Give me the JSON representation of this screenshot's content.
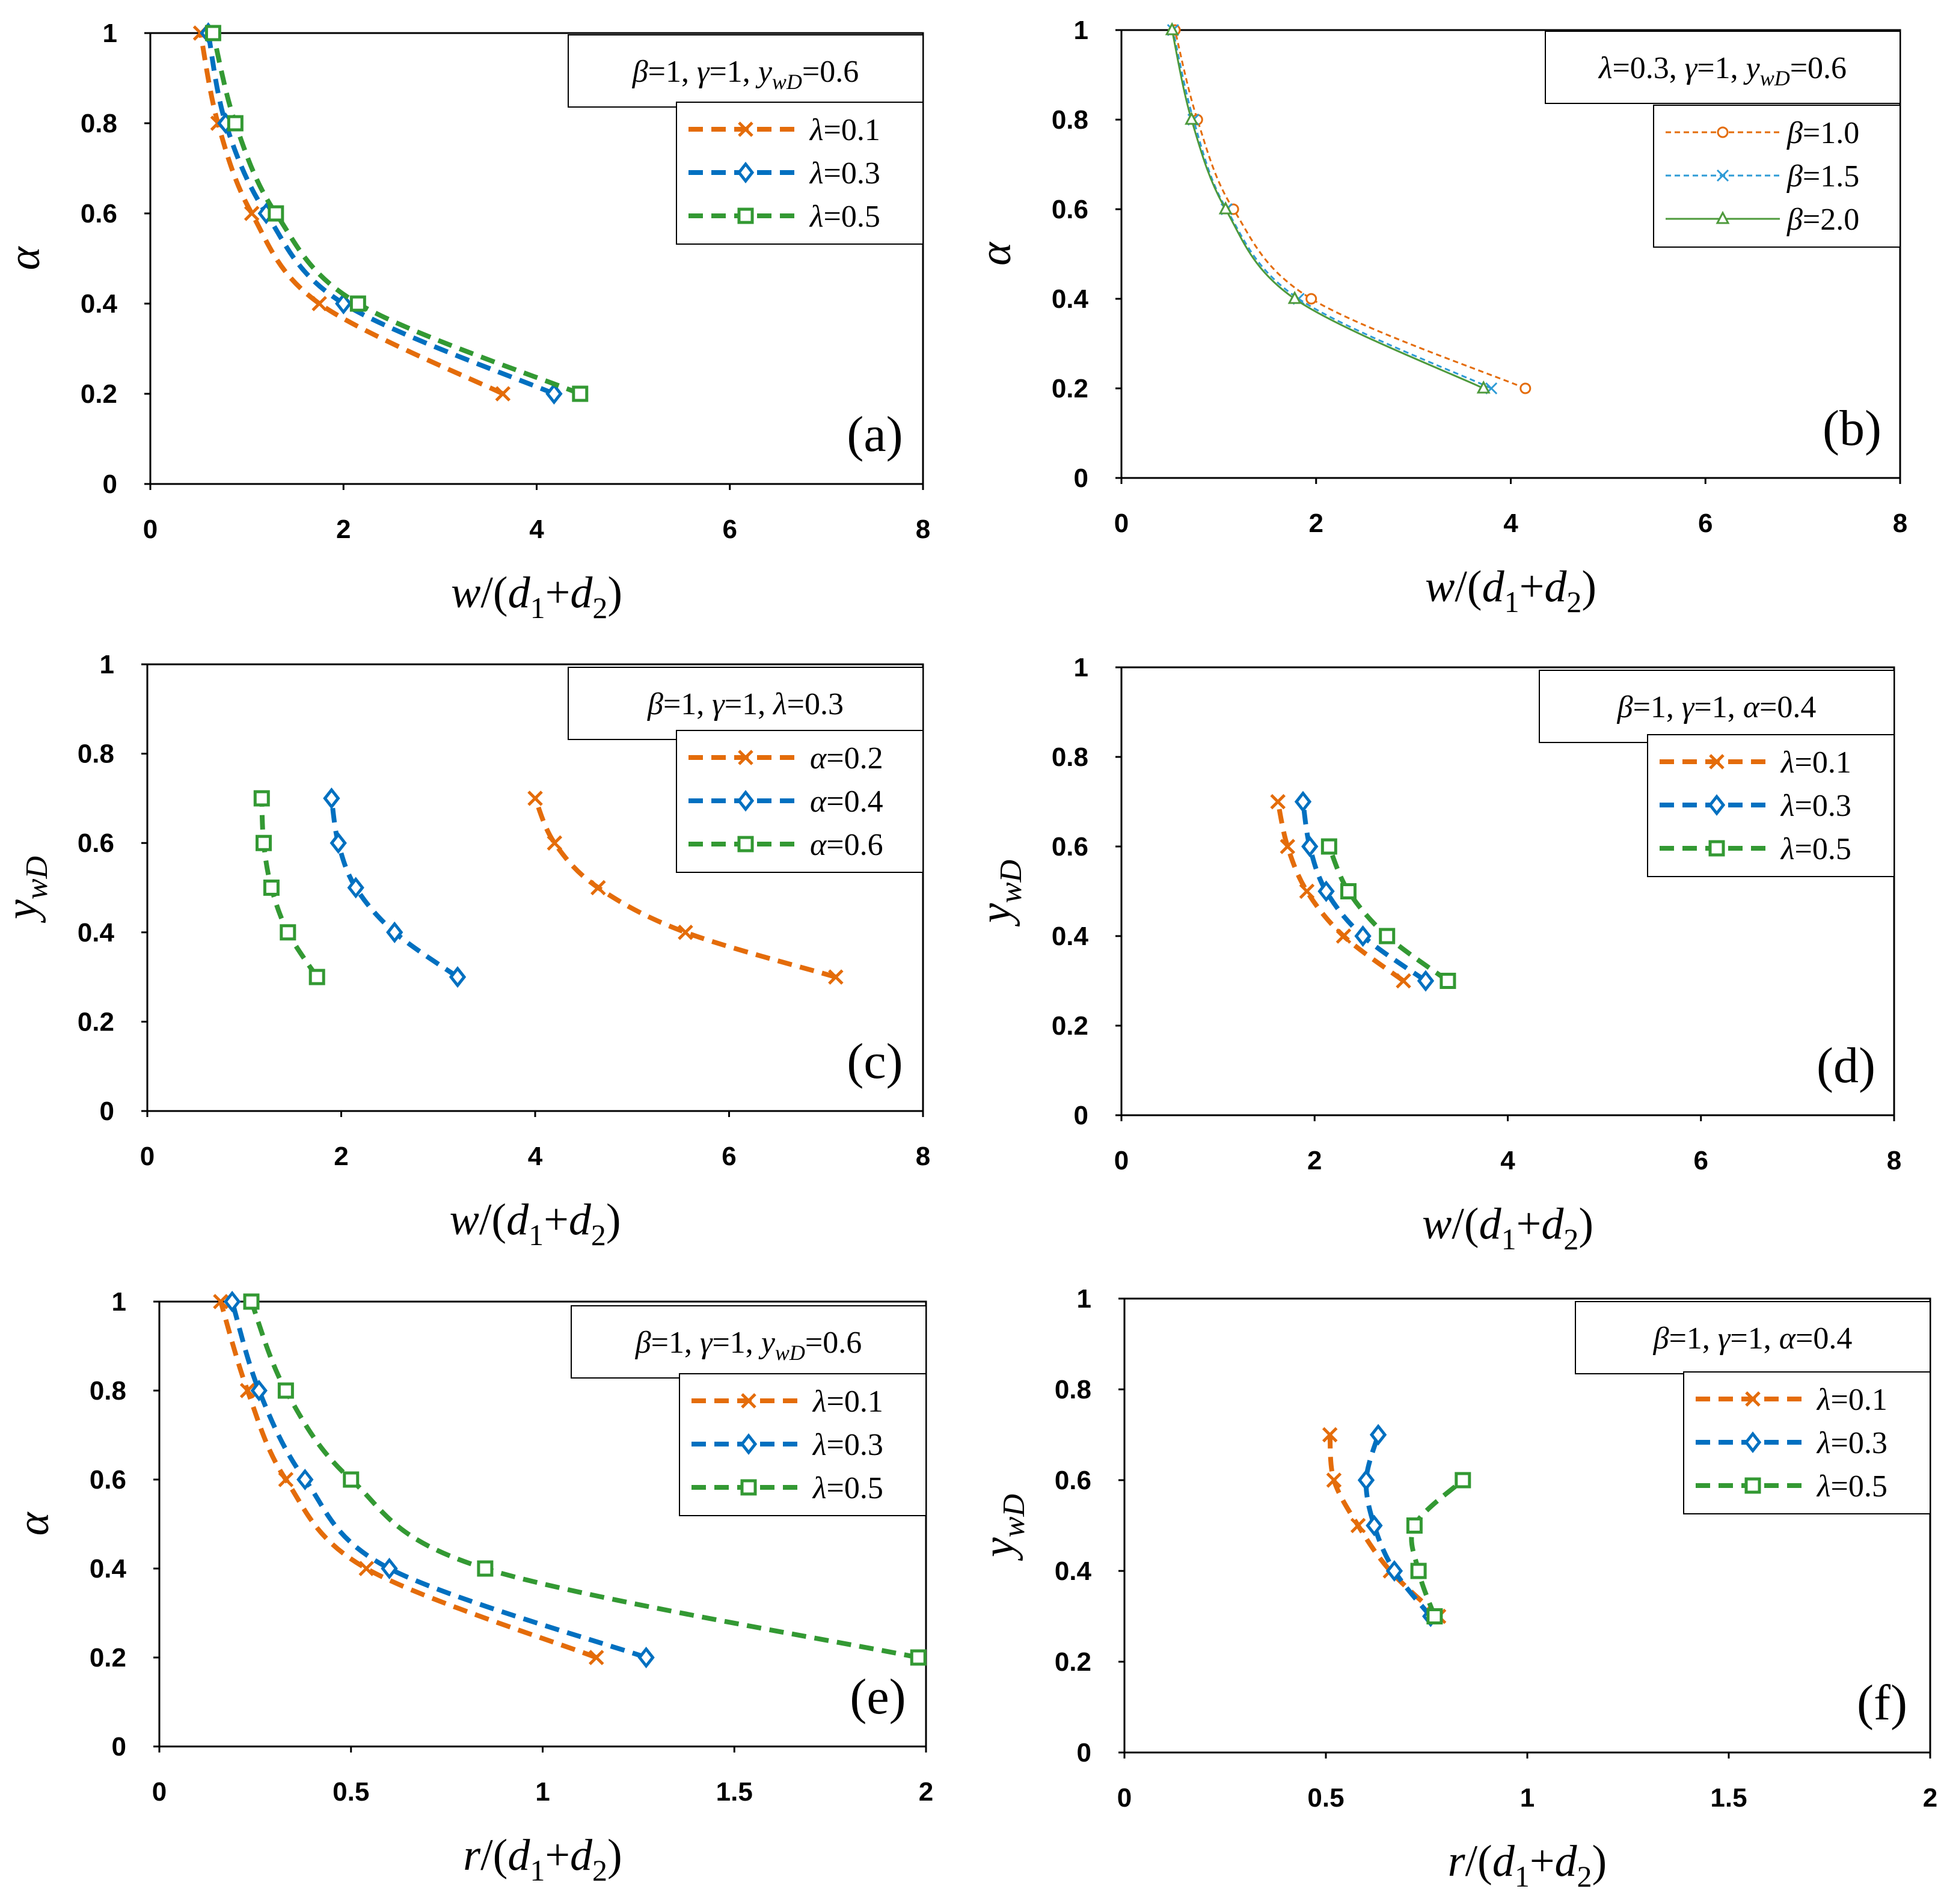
{
  "chart_data": [
    {
      "id": "a",
      "type": "line",
      "panel_label": "(a)",
      "xlabel": "w/(d1+d2)",
      "ylabel": "α",
      "xlim": [
        0,
        8
      ],
      "ylim": [
        0,
        1
      ],
      "xticks": [
        0,
        2,
        4,
        6,
        8
      ],
      "yticks": [
        0,
        0.2,
        0.4,
        0.6,
        0.8,
        1
      ],
      "xtick_labels": [
        "0",
        "2",
        "4",
        "6",
        "8"
      ],
      "ytick_labels": [
        "0",
        "0.2",
        "0.4",
        "0.6",
        "0.8",
        "1"
      ],
      "note": "β=1, γ=1, ywD=0.6",
      "series": [
        {
          "name": "λ=0.1",
          "color": "#E46C0A",
          "style": "bold-dash",
          "marker": "x",
          "x": [
            3.65,
            1.75,
            1.05,
            0.7,
            0.52
          ],
          "y": [
            0.2,
            0.4,
            0.6,
            0.8,
            1.0
          ]
        },
        {
          "name": "λ=0.3",
          "color": "#0070C0",
          "style": "bold-dash",
          "marker": "diamond",
          "x": [
            4.18,
            2.0,
            1.2,
            0.78,
            0.6
          ],
          "y": [
            0.2,
            0.4,
            0.6,
            0.8,
            1.0
          ]
        },
        {
          "name": "λ=0.5",
          "color": "#339933",
          "style": "bold-dash",
          "marker": "square",
          "x": [
            4.45,
            2.15,
            1.3,
            0.88,
            0.65
          ],
          "y": [
            0.2,
            0.4,
            0.6,
            0.8,
            1.0
          ]
        }
      ]
    },
    {
      "id": "b",
      "type": "line",
      "panel_label": "(b)",
      "xlabel": "w/(d1+d2)",
      "ylabel": "α",
      "xlim": [
        0,
        8
      ],
      "ylim": [
        0,
        1
      ],
      "xticks": [
        0,
        2,
        4,
        6,
        8
      ],
      "yticks": [
        0,
        0.2,
        0.4,
        0.6,
        0.8,
        1
      ],
      "xtick_labels": [
        "0",
        "2",
        "4",
        "6",
        "8"
      ],
      "ytick_labels": [
        "0",
        "0.2",
        "0.4",
        "0.6",
        "0.8",
        "1"
      ],
      "note": "λ=0.3, γ=1, ywD=0.6",
      "series": [
        {
          "name": "β=1.0",
          "color": "#E46C0A",
          "style": "fine-dash",
          "marker": "circle",
          "x": [
            4.15,
            1.95,
            1.15,
            0.78,
            0.55
          ],
          "y": [
            0.2,
            0.4,
            0.6,
            0.8,
            1.0
          ]
        },
        {
          "name": "β=1.5",
          "color": "#2E9BD6",
          "style": "fine-dash",
          "marker": "x",
          "x": [
            3.8,
            1.82,
            1.08,
            0.74,
            0.53
          ],
          "y": [
            0.2,
            0.4,
            0.6,
            0.8,
            1.0
          ]
        },
        {
          "name": "β=2.0",
          "color": "#4E9A3C",
          "style": "solid",
          "marker": "triangle",
          "x": [
            3.72,
            1.78,
            1.07,
            0.72,
            0.52
          ],
          "y": [
            0.2,
            0.4,
            0.6,
            0.8,
            1.0
          ]
        }
      ]
    },
    {
      "id": "c",
      "type": "line",
      "panel_label": "(c)",
      "xlabel": "w/(d1+d2)",
      "ylabel": "ywD",
      "xlim": [
        0,
        8
      ],
      "ylim": [
        0,
        1
      ],
      "xticks": [
        0,
        2,
        4,
        6,
        8
      ],
      "yticks": [
        0,
        0.2,
        0.4,
        0.6,
        0.8,
        1
      ],
      "xtick_labels": [
        "0",
        "2",
        "4",
        "6",
        "8"
      ],
      "ytick_labels": [
        "0",
        "0.2",
        "0.4",
        "0.6",
        "0.8",
        "1"
      ],
      "note": "β=1, γ=1, λ=0.3",
      "series": [
        {
          "name": "α=0.2",
          "color": "#E46C0A",
          "style": "bold-dash",
          "marker": "x",
          "x": [
            7.1,
            5.55,
            4.65,
            4.2,
            4.0
          ],
          "y": [
            0.3,
            0.4,
            0.5,
            0.6,
            0.7
          ]
        },
        {
          "name": "α=0.4",
          "color": "#0070C0",
          "style": "bold-dash",
          "marker": "diamond",
          "x": [
            3.2,
            2.55,
            2.15,
            1.97,
            1.9
          ],
          "y": [
            0.3,
            0.4,
            0.5,
            0.6,
            0.7
          ]
        },
        {
          "name": "α=0.6",
          "color": "#339933",
          "style": "bold-dash",
          "marker": "square",
          "x": [
            1.75,
            1.45,
            1.28,
            1.2,
            1.18
          ],
          "y": [
            0.3,
            0.4,
            0.5,
            0.6,
            0.7
          ]
        }
      ]
    },
    {
      "id": "d",
      "type": "line",
      "panel_label": "(d)",
      "xlabel": "w/(d1+d2)",
      "ylabel": "ywD",
      "xlim": [
        0,
        8
      ],
      "ylim": [
        0,
        1
      ],
      "xticks": [
        0,
        2,
        4,
        6,
        8
      ],
      "yticks": [
        0,
        0.2,
        0.4,
        0.6,
        0.8,
        1
      ],
      "xtick_labels": [
        "0",
        "2",
        "4",
        "6",
        "8"
      ],
      "ytick_labels": [
        "0",
        "0.2",
        "0.4",
        "0.6",
        "0.8",
        "1"
      ],
      "note": "β=1, γ=1, α=0.4",
      "series": [
        {
          "name": "λ=0.1",
          "color": "#E46C0A",
          "style": "bold-dash",
          "marker": "x",
          "x": [
            2.92,
            2.3,
            1.92,
            1.72,
            1.62
          ],
          "y": [
            0.3,
            0.4,
            0.5,
            0.6,
            0.7
          ]
        },
        {
          "name": "λ=0.3",
          "color": "#0070C0",
          "style": "bold-dash",
          "marker": "diamond",
          "x": [
            3.15,
            2.5,
            2.12,
            1.95,
            1.88
          ],
          "y": [
            0.3,
            0.4,
            0.5,
            0.6,
            0.7
          ]
        },
        {
          "name": "λ=0.5",
          "color": "#339933",
          "style": "bold-dash",
          "marker": "square",
          "x": [
            3.38,
            2.75,
            2.35,
            2.15
          ],
          "y": [
            0.3,
            0.4,
            0.5,
            0.6
          ]
        }
      ]
    },
    {
      "id": "e",
      "type": "line",
      "panel_label": "(e)",
      "xlabel": "r/(d1+d2)",
      "ylabel": "α",
      "xlim": [
        0,
        2
      ],
      "ylim": [
        0,
        1
      ],
      "xticks": [
        0,
        0.5,
        1,
        1.5,
        2
      ],
      "yticks": [
        0,
        0.2,
        0.4,
        0.6,
        0.8,
        1
      ],
      "xtick_labels": [
        "0",
        "0.5",
        "1",
        "1.5",
        "2"
      ],
      "ytick_labels": [
        "0",
        "0.2",
        "0.4",
        "0.6",
        "0.8",
        "1"
      ],
      "note": "β=1, γ=1, ywD=0.6",
      "series": [
        {
          "name": "λ=0.1",
          "color": "#E46C0A",
          "style": "bold-dash",
          "marker": "x",
          "x": [
            1.14,
            0.54,
            0.33,
            0.23,
            0.16
          ],
          "y": [
            0.2,
            0.4,
            0.6,
            0.8,
            1.0
          ]
        },
        {
          "name": "λ=0.3",
          "color": "#0070C0",
          "style": "bold-dash",
          "marker": "diamond",
          "x": [
            1.27,
            0.6,
            0.38,
            0.26,
            0.19
          ],
          "y": [
            0.2,
            0.4,
            0.6,
            0.8,
            1.0
          ]
        },
        {
          "name": "λ=0.5",
          "color": "#339933",
          "style": "bold-dash",
          "marker": "square",
          "x": [
            1.98,
            0.85,
            0.5,
            0.33,
            0.24
          ],
          "y": [
            0.2,
            0.4,
            0.6,
            0.8,
            1.0
          ]
        }
      ]
    },
    {
      "id": "f",
      "type": "line",
      "panel_label": "(f)",
      "xlabel": "r/(d1+d2)",
      "ylabel": "ywD",
      "xlim": [
        0,
        2
      ],
      "ylim": [
        0,
        1
      ],
      "xticks": [
        0,
        0.5,
        1,
        1.5,
        2
      ],
      "yticks": [
        0,
        0.2,
        0.4,
        0.6,
        0.8,
        1
      ],
      "xtick_labels": [
        "0",
        "0.5",
        "1",
        "1.5",
        "2"
      ],
      "ytick_labels": [
        "0",
        "0.2",
        "0.4",
        "0.6",
        "0.8",
        "1"
      ],
      "note": "β=1, γ=1, α=0.4",
      "series": [
        {
          "name": "λ=0.1",
          "color": "#E46C0A",
          "style": "bold-dash",
          "marker": "x",
          "x": [
            0.78,
            0.66,
            0.58,
            0.52,
            0.51
          ],
          "y": [
            0.3,
            0.4,
            0.5,
            0.6,
            0.7
          ]
        },
        {
          "name": "λ=0.3",
          "color": "#0070C0",
          "style": "bold-dash",
          "marker": "diamond",
          "x": [
            0.76,
            0.67,
            0.62,
            0.6,
            0.63
          ],
          "y": [
            0.3,
            0.4,
            0.5,
            0.6,
            0.7
          ]
        },
        {
          "name": "λ=0.5",
          "color": "#339933",
          "style": "bold-dash",
          "marker": "square",
          "x": [
            0.77,
            0.73,
            0.72,
            0.84
          ],
          "y": [
            0.3,
            0.4,
            0.5,
            0.6
          ]
        }
      ]
    }
  ]
}
